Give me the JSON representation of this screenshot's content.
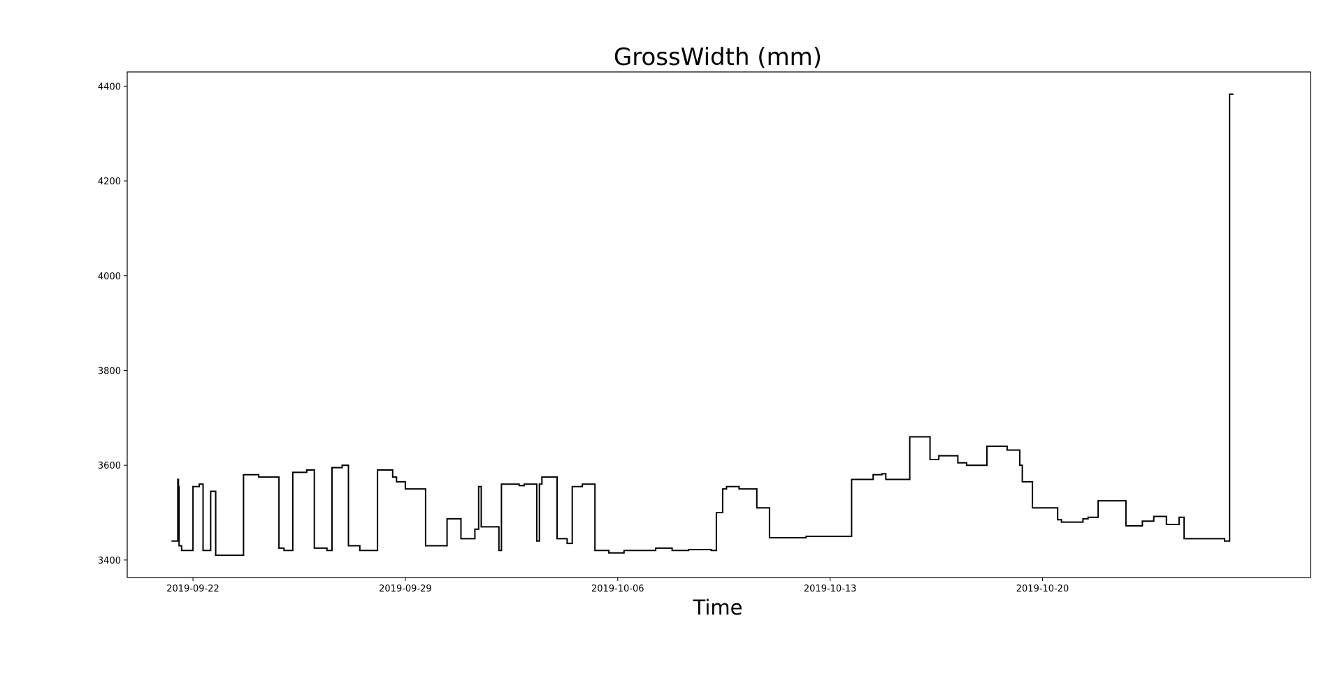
{
  "chart_data": {
    "type": "line",
    "title": "GrossWidth (mm)",
    "xlabel": "Time",
    "ylabel": "",
    "x_scale": "date",
    "xlim": [
      "2019-09-19T20:00",
      "2019-10-28T20:00"
    ],
    "ylim": [
      3363,
      4430
    ],
    "yticks": [
      3400,
      3600,
      3800,
      4000,
      4200,
      4400
    ],
    "xticks": [
      "2019-09-22",
      "2019-09-29",
      "2019-10-06",
      "2019-10-13",
      "2019-10-20"
    ],
    "grid": false,
    "legend": "none",
    "line_color": "#000000",
    "series": [
      {
        "x": [
          "2019-09-21T07:00",
          "2019-09-21T12:00",
          "2019-09-21T12:30",
          "2019-09-21T13:00",
          "2019-09-21T15:00",
          "2019-09-21T17:00",
          "2019-09-22T00:00",
          "2019-09-22T05:00",
          "2019-09-22T06:00",
          "2019-09-22T08:00",
          "2019-09-22T14:00",
          "2019-09-22T18:00",
          "2019-09-23T03:00",
          "2019-09-23T16:00",
          "2019-09-24T04:00",
          "2019-09-24T20:00",
          "2019-09-25T00:00",
          "2019-09-25T07:00",
          "2019-09-25T18:00",
          "2019-09-26T00:00",
          "2019-09-26T10:00",
          "2019-09-26T14:00",
          "2019-09-26T22:00",
          "2019-09-27T03:00",
          "2019-09-27T12:00",
          "2019-09-28T02:00",
          "2019-09-28T14:00",
          "2019-09-28T17:00",
          "2019-09-29T00:00",
          "2019-09-29T16:00",
          "2019-09-30T09:00",
          "2019-09-30T20:00",
          "2019-10-01T07:00",
          "2019-10-01T10:00",
          "2019-10-01T12:00",
          "2019-10-02T02:00",
          "2019-10-02T04:00",
          "2019-10-02T18:00",
          "2019-10-02T22:00",
          "2019-10-03T08:00",
          "2019-10-03T10:00",
          "2019-10-03T12:00",
          "2019-10-04T00:00",
          "2019-10-04T08:00",
          "2019-10-04T12:00",
          "2019-10-04T20:00",
          "2019-10-05T06:00",
          "2019-10-05T17:00",
          "2019-10-06T05:00",
          "2019-10-07T06:00",
          "2019-10-07T19:00",
          "2019-10-08T08:00",
          "2019-10-09T02:00",
          "2019-10-09T06:00",
          "2019-10-09T11:00",
          "2019-10-09T14:00",
          "2019-10-10T00:00",
          "2019-10-10T14:00",
          "2019-10-11T00:00",
          "2019-10-12T05:00",
          "2019-10-13T17:00",
          "2019-10-14T10:00",
          "2019-10-14T17:00",
          "2019-10-14T20:00",
          "2019-10-15T15:00",
          "2019-10-16T07:00",
          "2019-10-16T14:00",
          "2019-10-17T05:00",
          "2019-10-17T12:00",
          "2019-10-18T04:00",
          "2019-10-18T20:00",
          "2019-10-19T06:00",
          "2019-10-19T08:00",
          "2019-10-19T16:00",
          "2019-10-20T12:00",
          "2019-10-20T15:00",
          "2019-10-21T08:00",
          "2019-10-21T12:00",
          "2019-10-21T20:00",
          "2019-10-22T18:00",
          "2019-10-23T07:00",
          "2019-10-23T16:00",
          "2019-10-24T02:00",
          "2019-10-24T12:00",
          "2019-10-24T16:00",
          "2019-10-26T00:00",
          "2019-10-26T02:00",
          "2019-10-26T04:00",
          "2019-10-26T07:00"
        ],
        "values": [
          3440,
          3570,
          3555,
          3430,
          3420,
          3420,
          3555,
          3560,
          3560,
          3420,
          3545,
          3410,
          3410,
          3580,
          3575,
          3425,
          3420,
          3585,
          3590,
          3425,
          3420,
          3595,
          3600,
          3430,
          3420,
          3590,
          3575,
          3565,
          3550,
          3430,
          3487,
          3445,
          3465,
          3555,
          3470,
          3420,
          3560,
          3557,
          3560,
          3440,
          3560,
          3575,
          3445,
          3435,
          3555,
          3560,
          3420,
          3415,
          3420,
          3425,
          3420,
          3422,
          3420,
          3500,
          3550,
          3555,
          3550,
          3510,
          3447,
          3450,
          3570,
          3580,
          3582,
          3570,
          3660,
          3612,
          3620,
          3605,
          3600,
          3640,
          3632,
          3600,
          3565,
          3510,
          3485,
          3480,
          3487,
          3490,
          3525,
          3472,
          3482,
          3492,
          3475,
          3490,
          3445,
          3440,
          3440,
          4383,
          4383
        ]
      }
    ]
  }
}
